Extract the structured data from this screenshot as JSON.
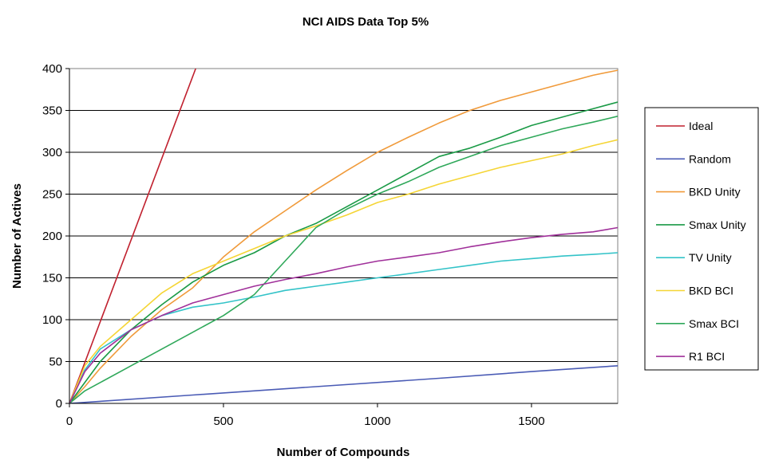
{
  "chart_data": {
    "type": "line",
    "title": "NCI AIDS Data Top 5%",
    "xlabel": "Number of Compounds",
    "ylabel": "Number of Actives",
    "xlim": [
      0,
      1780
    ],
    "ylim": [
      0,
      400
    ],
    "x_ticks": [
      0,
      500,
      1000,
      1500
    ],
    "y_ticks": [
      0,
      50,
      100,
      150,
      200,
      250,
      300,
      350,
      400
    ],
    "grid": "horizontal",
    "legend_position": "right",
    "series": [
      {
        "name": "Ideal",
        "color": "#c0202e",
        "x": [
          0,
          410
        ],
        "y": [
          0,
          400
        ]
      },
      {
        "name": "Random",
        "color": "#4a5bb5",
        "x": [
          0,
          100,
          400,
          800,
          1200,
          1500,
          1780
        ],
        "y": [
          0,
          2.5,
          10,
          20,
          30,
          38,
          45
        ]
      },
      {
        "name": "BKD Unity",
        "color": "#f09a3a",
        "x": [
          0,
          50,
          100,
          200,
          300,
          400,
          500,
          600,
          700,
          800,
          900,
          1000,
          1100,
          1200,
          1300,
          1400,
          1500,
          1600,
          1700,
          1780
        ],
        "y": [
          0,
          20,
          42,
          80,
          112,
          138,
          175,
          205,
          230,
          255,
          278,
          300,
          318,
          335,
          350,
          362,
          372,
          382,
          392,
          398
        ]
      },
      {
        "name": "Smax Unity",
        "color": "#1a9a46",
        "x": [
          0,
          100,
          200,
          300,
          400,
          500,
          600,
          700,
          800,
          900,
          1000,
          1100,
          1200,
          1300,
          1400,
          1500,
          1600,
          1700,
          1780
        ],
        "y": [
          0,
          50,
          88,
          118,
          145,
          165,
          180,
          200,
          215,
          235,
          255,
          275,
          295,
          305,
          318,
          332,
          342,
          352,
          360
        ]
      },
      {
        "name": "TV Unity",
        "color": "#33c3c8",
        "x": [
          0,
          50,
          100,
          200,
          300,
          400,
          500,
          600,
          700,
          800,
          900,
          1000,
          1100,
          1200,
          1300,
          1400,
          1500,
          1600,
          1700,
          1780
        ],
        "y": [
          0,
          40,
          65,
          88,
          105,
          115,
          120,
          127,
          135,
          140,
          145,
          150,
          155,
          160,
          165,
          170,
          173,
          176,
          178,
          180
        ]
      },
      {
        "name": "BKD BCI",
        "color": "#f5d535",
        "x": [
          0,
          50,
          100,
          200,
          300,
          400,
          500,
          600,
          700,
          800,
          900,
          1000,
          1100,
          1200,
          1300,
          1400,
          1500,
          1600,
          1700,
          1780
        ],
        "y": [
          0,
          45,
          68,
          100,
          132,
          155,
          170,
          185,
          200,
          212,
          225,
          240,
          250,
          262,
          272,
          282,
          290,
          298,
          308,
          315
        ]
      },
      {
        "name": "Smax BCI",
        "color": "#2fa85a",
        "x": [
          0,
          50,
          100,
          200,
          300,
          400,
          500,
          600,
          700,
          800,
          900,
          1000,
          1100,
          1200,
          1300,
          1400,
          1500,
          1600,
          1700,
          1780
        ],
        "y": [
          0,
          15,
          25,
          45,
          65,
          85,
          105,
          130,
          170,
          210,
          232,
          250,
          265,
          282,
          295,
          308,
          318,
          328,
          336,
          343
        ]
      },
      {
        "name": "R1 BCI",
        "color": "#a0309a",
        "x": [
          0,
          50,
          100,
          200,
          300,
          400,
          500,
          600,
          700,
          800,
          900,
          1000,
          1100,
          1200,
          1300,
          1400,
          1500,
          1600,
          1700,
          1780
        ],
        "y": [
          0,
          38,
          60,
          88,
          105,
          120,
          130,
          140,
          148,
          155,
          163,
          170,
          175,
          180,
          187,
          193,
          198,
          202,
          205,
          210
        ]
      }
    ]
  }
}
